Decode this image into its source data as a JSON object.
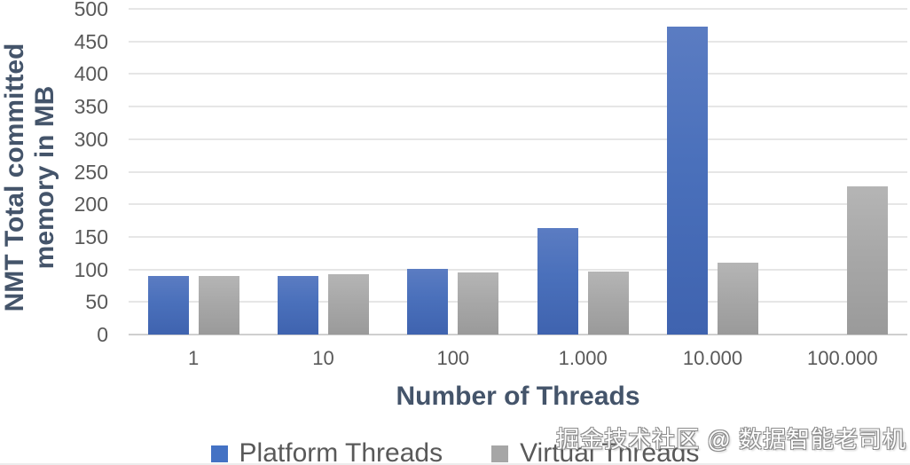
{
  "chart_data": {
    "type": "bar",
    "title": "",
    "categories": [
      "1",
      "10",
      "100",
      "1.000",
      "10.000",
      "100.000"
    ],
    "series": [
      {
        "name": "Platform Threads",
        "color": "#4472C4",
        "values": [
          90,
          90,
          101,
          164,
          473,
          null
        ]
      },
      {
        "name": "Virtual Threads",
        "color": "#A6A6A6",
        "values": [
          90,
          92,
          95,
          97,
          110,
          227
        ]
      }
    ],
    "xlabel": "Number of Threads",
    "ylabel": "NMT Total committed memory in MB",
    "ylim": [
      0,
      500
    ],
    "y_tick_labels": [
      "0",
      "50",
      "100",
      "150",
      "200",
      "250",
      "300",
      "350",
      "400",
      "450",
      "500"
    ],
    "grid": true,
    "legend_position": "bottom"
  },
  "watermark": {
    "text": "掘金技术社区 @ 数据智能老司机"
  },
  "colors": {
    "axis_title": "#44546A",
    "tick_label": "#595959",
    "gridline": "#E6E6E6",
    "platform_bar": "#4472C4",
    "virtual_bar": "#A6A6A6",
    "watermark_text": "#FFFFFF"
  }
}
